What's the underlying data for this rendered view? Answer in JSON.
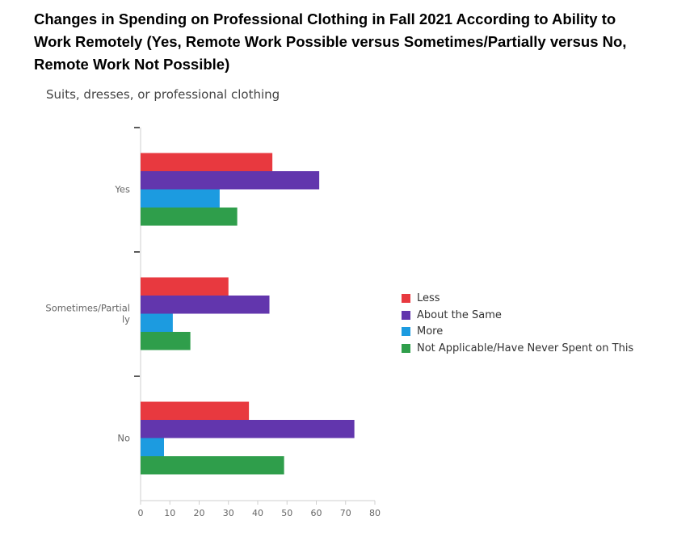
{
  "chart_data": {
    "type": "bar",
    "orientation": "horizontal",
    "title": "Changes in Spending on Professional Clothing in Fall 2021 According to Ability to Work Remotely (Yes, Remote Work Possible versus Sometimes/Partially versus No, Remote Work Not Possible)",
    "subtitle": "Suits, dresses, or professional clothing",
    "categories": [
      "Yes",
      "Sometimes/Partially",
      "No"
    ],
    "category_label_lines": [
      [
        "Yes"
      ],
      [
        "Sometimes/Partial",
        "ly"
      ],
      [
        "No"
      ]
    ],
    "series": [
      {
        "name": "Less",
        "color": "#e8393f",
        "values": [
          45,
          30,
          37
        ]
      },
      {
        "name": "About the Same",
        "color": "#6236ad",
        "values": [
          61,
          44,
          73
        ]
      },
      {
        "name": "More",
        "color": "#1c9be0",
        "values": [
          27,
          11,
          8
        ]
      },
      {
        "name": "Not Applicable/Have Never Spent on This",
        "color": "#2f9e4b",
        "values": [
          33,
          17,
          49
        ]
      }
    ],
    "xlim": [
      0,
      80
    ],
    "xticks": [
      0,
      10,
      20,
      30,
      40,
      50,
      60,
      70,
      80
    ],
    "xlabel": "",
    "ylabel": "",
    "grid": false,
    "legend_position": "right"
  }
}
